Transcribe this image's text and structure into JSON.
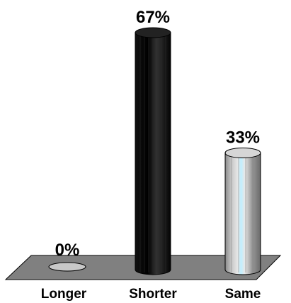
{
  "chart_data": {
    "type": "bar",
    "title": "",
    "xlabel": "",
    "ylabel": "",
    "categories": [
      "Longer",
      "Shorter",
      "Same"
    ],
    "values": [
      0,
      67,
      33
    ],
    "value_labels": [
      "0%",
      "67%",
      "33%"
    ],
    "ylim": [
      0,
      67
    ],
    "grid": false,
    "legend": "none",
    "style": "3d-cylinder",
    "colors": {
      "floor": "#808080",
      "floor_edge": "#000000",
      "empty_bar": "#c8c8c8",
      "bars": [
        "#c8c8c8",
        "#000000",
        "#b9b9b9"
      ],
      "same_highlight": "#bfefff"
    }
  }
}
